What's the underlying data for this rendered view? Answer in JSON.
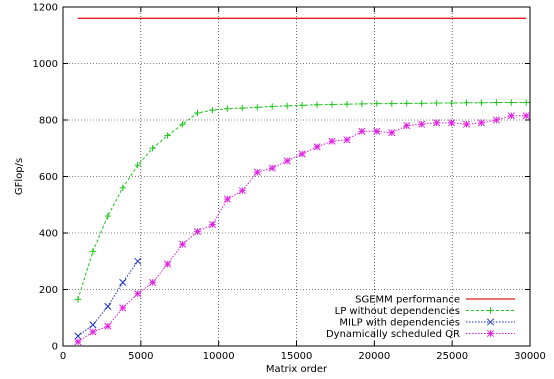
{
  "chart_data": {
    "type": "line",
    "xlabel": "Matrix order",
    "ylabel": "GFlop/s",
    "xlim": [
      0,
      30000
    ],
    "ylim": [
      0,
      1200
    ],
    "x_ticks": [
      0,
      5000,
      10000,
      15000,
      20000,
      25000,
      30000
    ],
    "y_ticks": [
      0,
      200,
      400,
      600,
      800,
      1000,
      1200
    ],
    "grid": true,
    "legend_position": "bottom-right",
    "series": [
      {
        "name": "SGEMM performance",
        "color": "#e31a1c",
        "marker": "none",
        "dash": "solid",
        "x": [
          960,
          29760
        ],
        "y": [
          1160,
          1160
        ]
      },
      {
        "name": "LP without dependencies",
        "color": "#1fc41f",
        "marker": "plus",
        "dash": "dashed",
        "x": [
          960,
          1920,
          2880,
          3840,
          4800,
          5760,
          6720,
          7680,
          8640,
          9600,
          10560,
          11520,
          12480,
          13440,
          14400,
          15360,
          16320,
          17280,
          18240,
          19200,
          20160,
          21120,
          22080,
          23040,
          24000,
          24960,
          25920,
          26880,
          27840,
          28800,
          29760
        ],
        "y": [
          165,
          335,
          460,
          560,
          640,
          700,
          745,
          785,
          825,
          835,
          840,
          842,
          845,
          848,
          850,
          852,
          854,
          855,
          856,
          857,
          858,
          858,
          859,
          859,
          860,
          860,
          861,
          861,
          862,
          862,
          862
        ]
      },
      {
        "name": "MILP with dependencies",
        "color": "#1a33c4",
        "marker": "cross",
        "dash": "dotted",
        "x": [
          960,
          1920,
          2880,
          3840,
          4800
        ],
        "y": [
          35,
          75,
          140,
          225,
          300
        ]
      },
      {
        "name": "Dynamically scheduled QR",
        "color": "#e020e0",
        "marker": "asterisk",
        "dash": "dotted",
        "x": [
          960,
          1920,
          2880,
          3840,
          4800,
          5760,
          6720,
          7680,
          8640,
          9600,
          10560,
          11520,
          12480,
          13440,
          14400,
          15360,
          16320,
          17280,
          18240,
          19200,
          20160,
          21120,
          22080,
          23040,
          24000,
          24960,
          25920,
          26880,
          27840,
          28800,
          29760
        ],
        "y": [
          15,
          50,
          70,
          135,
          185,
          225,
          290,
          360,
          405,
          430,
          520,
          550,
          615,
          630,
          655,
          680,
          705,
          725,
          730,
          760,
          760,
          755,
          780,
          785,
          790,
          790,
          785,
          790,
          800,
          815,
          815
        ]
      }
    ]
  }
}
